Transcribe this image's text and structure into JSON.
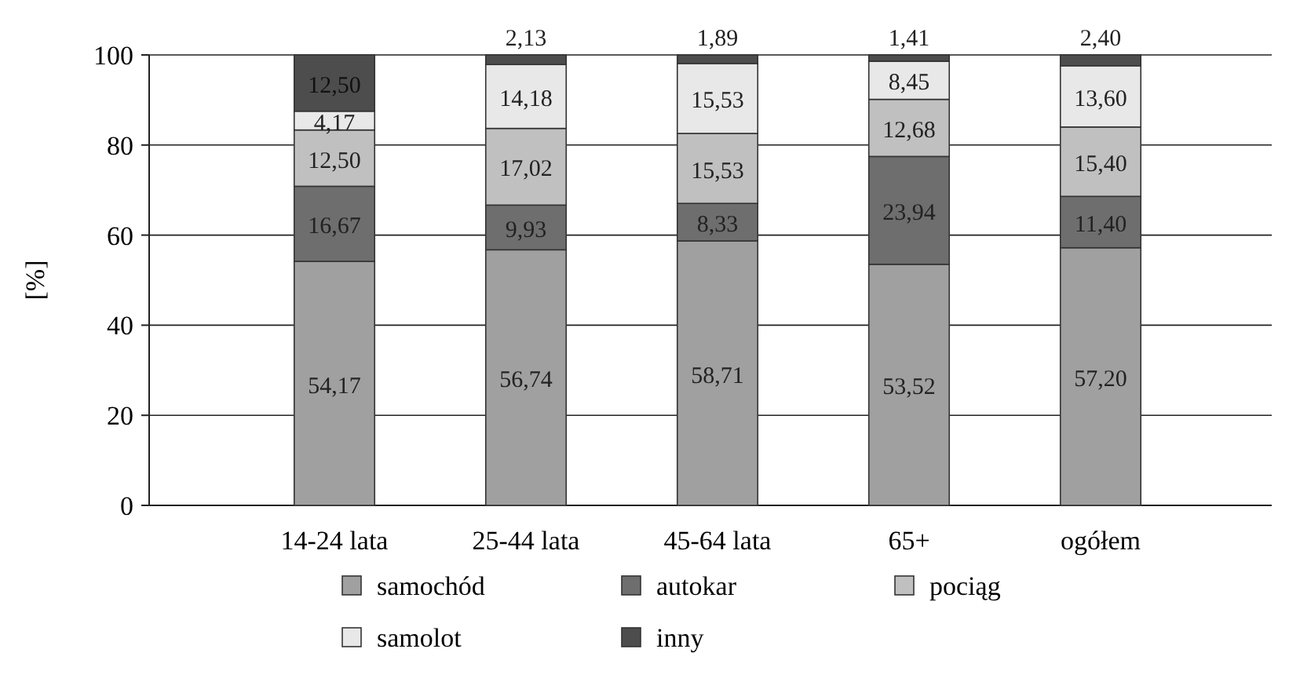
{
  "chart_data": {
    "type": "bar",
    "stacked": true,
    "ylabel": "[%]",
    "categories": [
      "14-24 lata",
      "25-44 lata",
      "45-64 lata",
      "65+",
      "ogółem"
    ],
    "ylim": [
      0,
      100
    ],
    "yticks": [
      0,
      20,
      40,
      60,
      80,
      100
    ],
    "grid": "y",
    "legend": "bottom",
    "series": [
      {
        "name": "samochód",
        "color": "#a0a0a0",
        "values": [
          54.17,
          56.74,
          58.71,
          53.52,
          57.2
        ],
        "value_labels": [
          "54,17",
          "56,74",
          "58,71",
          "53,52",
          "57,20"
        ]
      },
      {
        "name": "autokar",
        "color": "#6e6e6e",
        "values": [
          16.67,
          9.93,
          8.33,
          23.94,
          11.4
        ],
        "value_labels": [
          "16,67",
          "9,93",
          "8,33",
          "23,94",
          "11,40"
        ]
      },
      {
        "name": "pociąg",
        "color": "#c0c0c0",
        "values": [
          12.5,
          17.02,
          15.53,
          12.68,
          15.4
        ],
        "value_labels": [
          "12,50",
          "17,02",
          "15,53",
          "12,68",
          "15,40"
        ]
      },
      {
        "name": "samolot",
        "color": "#e8e8e8",
        "values": [
          4.17,
          14.18,
          15.53,
          8.45,
          13.6
        ],
        "value_labels": [
          "4,17",
          "14,18",
          "15,53",
          "8,45",
          "13,60"
        ]
      },
      {
        "name": "inny",
        "color": "#4d4d4d",
        "values": [
          12.5,
          2.13,
          1.89,
          1.41,
          2.4
        ],
        "value_labels": [
          "12,50",
          "2,13",
          "1,89",
          "1,41",
          "2,40"
        ]
      }
    ]
  }
}
